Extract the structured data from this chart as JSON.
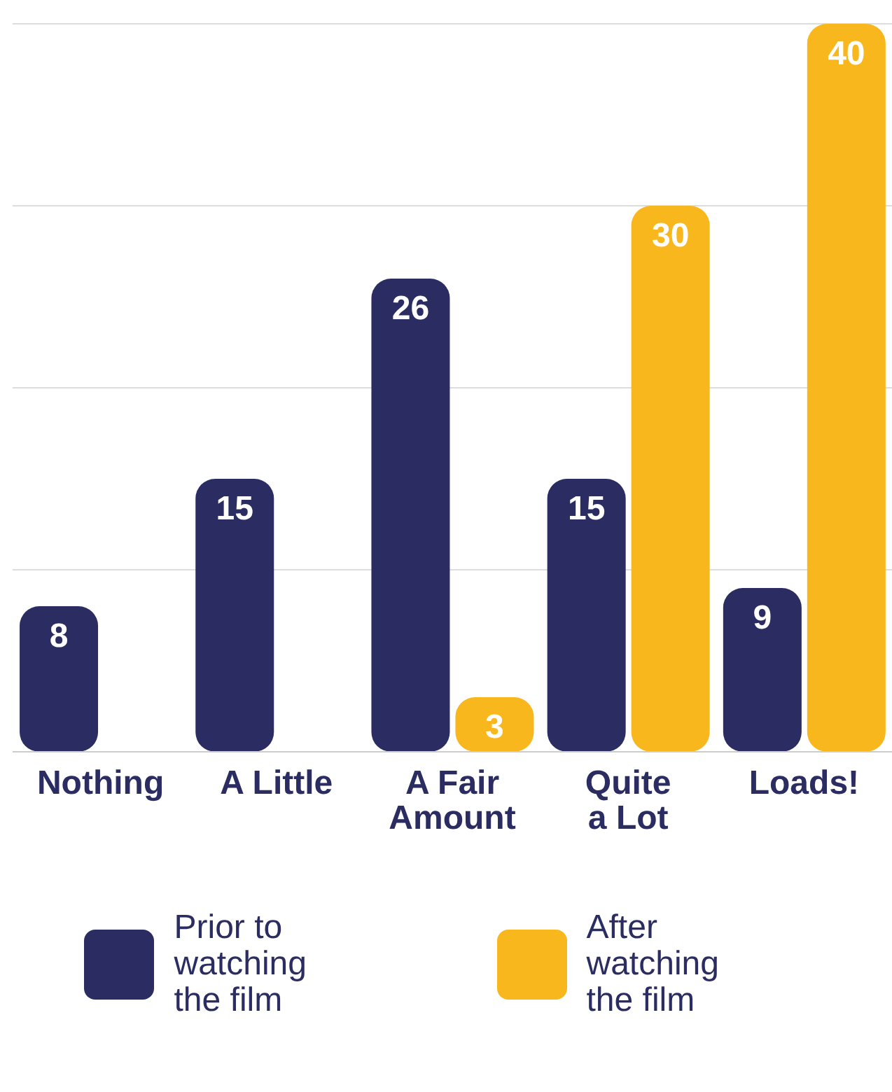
{
  "chart_data": {
    "type": "bar",
    "categories": [
      "Nothing",
      "A Little",
      "A Fair Amount",
      "Quite a Lot",
      "Loads!"
    ],
    "series": [
      {
        "name": "Prior to watching the film",
        "color": "#2b2d62",
        "values": [
          8,
          15,
          26,
          15,
          9
        ]
      },
      {
        "name": "After watching the film",
        "color": "#f9b71e",
        "values": [
          null,
          null,
          3,
          30,
          40
        ]
      }
    ],
    "ylim": [
      0,
      40
    ],
    "yticks": [
      {
        "value": 0,
        "label": null
      },
      {
        "value": 10,
        "label": null
      },
      {
        "value": 20,
        "label": null
      },
      {
        "value": 30,
        "label": null
      },
      {
        "value": 40,
        "label": null
      }
    ],
    "tick_labels": "x",
    "grid": "y",
    "data_labels": true,
    "legend": "bottom"
  }
}
